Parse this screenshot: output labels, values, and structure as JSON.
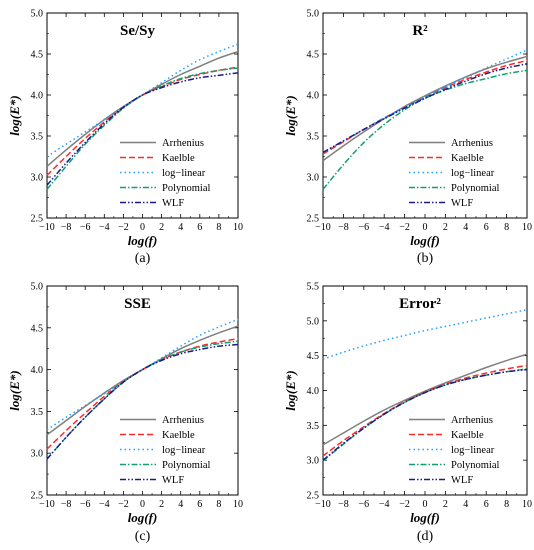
{
  "series_styles": [
    {
      "name": "Arrhenius",
      "color": "#7f7f7f",
      "dash": ""
    },
    {
      "name": "Kaelble",
      "color": "#ff2a2a",
      "dash": "6,3"
    },
    {
      "name": "log−linear",
      "color": "#1fa2ff",
      "dash": "1.5,3"
    },
    {
      "name": "Polynomial",
      "color": "#12a06a",
      "dash": "6,2,1.5,2"
    },
    {
      "name": "WLF",
      "color": "#1a1a8c",
      "dash": "6,2,1.5,2,1.5,2"
    }
  ],
  "chart_data": [
    {
      "type": "line",
      "title": "Se/Sy",
      "caption": "(a)",
      "xlabel": "log(f)",
      "ylabel": "log(E*)",
      "xlim": [
        -10,
        10
      ],
      "ylim": [
        2.5,
        5.0
      ],
      "xticks": [
        -10,
        -8,
        -6,
        -4,
        -2,
        0,
        2,
        4,
        6,
        8,
        10
      ],
      "xtick_labels": [
        "−10",
        "−8",
        "−6",
        "−4",
        "−2",
        "0",
        "2",
        "4",
        "6",
        "8",
        "10"
      ],
      "yticks": [
        2.5,
        3.0,
        3.5,
        4.0,
        4.5,
        5.0
      ],
      "ytick_labels": [
        "2.5",
        "3.0",
        "3.5",
        "4.0",
        "4.5",
        "5.0"
      ],
      "legend": "lower-right",
      "x": [
        -10,
        -8,
        -6,
        -4,
        -2,
        0,
        2,
        4,
        6,
        8,
        10
      ],
      "series": [
        {
          "name": "Arrhenius",
          "values": [
            3.13,
            3.33,
            3.52,
            3.7,
            3.86,
            4.0,
            4.13,
            4.25,
            4.35,
            4.45,
            4.53
          ]
        },
        {
          "name": "Kaelble",
          "values": [
            3.02,
            3.25,
            3.47,
            3.67,
            3.85,
            4.0,
            4.1,
            4.19,
            4.25,
            4.3,
            4.34
          ]
        },
        {
          "name": "log−linear",
          "values": [
            3.25,
            3.4,
            3.55,
            3.7,
            3.85,
            4.0,
            4.15,
            4.3,
            4.43,
            4.53,
            4.62
          ]
        },
        {
          "name": "Polynomial",
          "values": [
            2.85,
            3.13,
            3.4,
            3.63,
            3.84,
            4.0,
            4.11,
            4.2,
            4.26,
            4.3,
            4.33
          ]
        },
        {
          "name": "WLF",
          "values": [
            2.9,
            3.17,
            3.42,
            3.65,
            3.85,
            4.0,
            4.09,
            4.16,
            4.21,
            4.24,
            4.27
          ]
        }
      ]
    },
    {
      "type": "line",
      "title": "R²",
      "caption": "(b)",
      "xlabel": "log(f)",
      "ylabel": "log(E*)",
      "xlim": [
        -10,
        10
      ],
      "ylim": [
        2.5,
        5.0
      ],
      "xticks": [
        -10,
        -8,
        -6,
        -4,
        -2,
        0,
        2,
        4,
        6,
        8,
        10
      ],
      "xtick_labels": [
        "−10",
        "−8",
        "−6",
        "−4",
        "−2",
        "0",
        "2",
        "4",
        "6",
        "8",
        "10"
      ],
      "yticks": [
        2.5,
        3.0,
        3.5,
        4.0,
        4.5,
        5.0
      ],
      "ytick_labels": [
        "2.5",
        "3.0",
        "3.5",
        "4.0",
        "4.5",
        "5.0"
      ],
      "legend": "lower-right",
      "x": [
        -10,
        -8,
        -6,
        -4,
        -2,
        0,
        2,
        4,
        6,
        8,
        10
      ],
      "series": [
        {
          "name": "Arrhenius",
          "values": [
            3.2,
            3.38,
            3.55,
            3.71,
            3.86,
            3.99,
            4.11,
            4.22,
            4.32,
            4.4,
            4.47
          ]
        },
        {
          "name": "Kaelble",
          "values": [
            3.28,
            3.43,
            3.58,
            3.72,
            3.85,
            3.97,
            4.09,
            4.19,
            4.28,
            4.36,
            4.42
          ]
        },
        {
          "name": "log−linear",
          "values": [
            3.3,
            3.44,
            3.58,
            3.72,
            3.85,
            3.98,
            4.1,
            4.21,
            4.33,
            4.44,
            4.55
          ]
        },
        {
          "name": "Polynomial",
          "values": [
            2.85,
            3.15,
            3.42,
            3.64,
            3.82,
            3.96,
            4.06,
            4.14,
            4.2,
            4.26,
            4.3
          ]
        },
        {
          "name": "WLF",
          "values": [
            3.3,
            3.44,
            3.58,
            3.71,
            3.84,
            3.96,
            4.07,
            4.17,
            4.26,
            4.33,
            4.38
          ]
        }
      ]
    },
    {
      "type": "line",
      "title": "SSE",
      "caption": "(c)",
      "xlabel": "log(f)",
      "ylabel": "log(E*)",
      "xlim": [
        -10,
        10
      ],
      "ylim": [
        2.5,
        5.0
      ],
      "xticks": [
        -10,
        -8,
        -6,
        -4,
        -2,
        0,
        2,
        4,
        6,
        8,
        10
      ],
      "xtick_labels": [
        "−10",
        "−8",
        "−6",
        "−4",
        "−2",
        "0",
        "2",
        "4",
        "6",
        "8",
        "10"
      ],
      "yticks": [
        2.5,
        3.0,
        3.5,
        4.0,
        4.5,
        5.0
      ],
      "ytick_labels": [
        "2.5",
        "3.0",
        "3.5",
        "4.0",
        "4.5",
        "5.0"
      ],
      "legend": "lower-right",
      "x": [
        -10,
        -8,
        -6,
        -4,
        -2,
        0,
        2,
        4,
        6,
        8,
        10
      ],
      "series": [
        {
          "name": "Arrhenius",
          "values": [
            3.22,
            3.39,
            3.56,
            3.72,
            3.87,
            4.0,
            4.13,
            4.25,
            4.35,
            4.44,
            4.52
          ]
        },
        {
          "name": "Kaelble",
          "values": [
            3.05,
            3.27,
            3.48,
            3.68,
            3.86,
            4.0,
            4.12,
            4.21,
            4.28,
            4.33,
            4.37
          ]
        },
        {
          "name": "log−linear",
          "values": [
            3.28,
            3.43,
            3.57,
            3.71,
            3.86,
            4.0,
            4.14,
            4.28,
            4.41,
            4.51,
            4.6
          ]
        },
        {
          "name": "Polynomial",
          "values": [
            2.93,
            3.19,
            3.43,
            3.65,
            3.85,
            4.0,
            4.12,
            4.21,
            4.27,
            4.31,
            4.34
          ]
        },
        {
          "name": "WLF",
          "values": [
            2.93,
            3.19,
            3.43,
            3.65,
            3.85,
            4.0,
            4.11,
            4.19,
            4.24,
            4.28,
            4.3
          ]
        }
      ]
    },
    {
      "type": "line",
      "title": "Error²",
      "caption": "(d)",
      "xlabel": "log(f)",
      "ylabel": "log(E*)",
      "xlim": [
        -10,
        10
      ],
      "ylim": [
        2.5,
        5.5
      ],
      "xticks": [
        -10,
        -8,
        -6,
        -4,
        -2,
        0,
        2,
        4,
        6,
        8,
        10
      ],
      "xtick_labels": [
        "−10",
        "−8",
        "−6",
        "−4",
        "−2",
        "0",
        "2",
        "4",
        "6",
        "8",
        "10"
      ],
      "yticks": [
        2.5,
        3.0,
        3.5,
        4.0,
        4.5,
        5.0,
        5.5
      ],
      "ytick_labels": [
        "2.5",
        "3.0",
        "3.5",
        "4.0",
        "4.5",
        "5.0",
        "5.5"
      ],
      "legend": "lower-right",
      "x": [
        -10,
        -8,
        -6,
        -4,
        -2,
        0,
        2,
        4,
        6,
        8,
        10
      ],
      "series": [
        {
          "name": "Arrhenius",
          "values": [
            3.22,
            3.39,
            3.56,
            3.72,
            3.86,
            3.99,
            4.11,
            4.22,
            4.33,
            4.43,
            4.52
          ]
        },
        {
          "name": "Kaelble",
          "values": [
            3.06,
            3.28,
            3.48,
            3.67,
            3.84,
            3.98,
            4.09,
            4.18,
            4.25,
            4.31,
            4.36
          ]
        },
        {
          "name": "log−linear",
          "values": [
            4.45,
            4.55,
            4.64,
            4.72,
            4.79,
            4.86,
            4.92,
            4.98,
            5.04,
            5.1,
            5.16
          ]
        },
        {
          "name": "Polynomial",
          "values": [
            2.99,
            3.23,
            3.46,
            3.66,
            3.83,
            3.97,
            4.08,
            4.16,
            4.22,
            4.27,
            4.31
          ]
        },
        {
          "name": "WLF",
          "values": [
            3.0,
            3.24,
            3.46,
            3.66,
            3.83,
            3.97,
            4.08,
            4.16,
            4.22,
            4.27,
            4.3
          ]
        }
      ]
    }
  ]
}
